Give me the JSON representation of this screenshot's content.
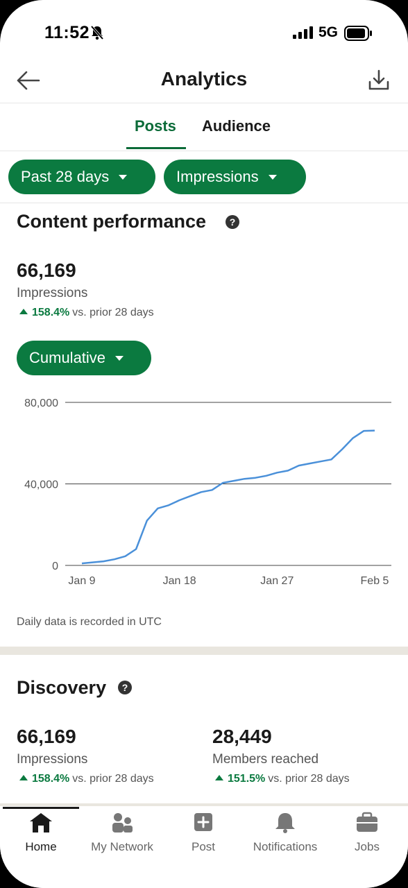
{
  "status": {
    "time": "11:52",
    "network": "5G"
  },
  "header": {
    "title": "Analytics"
  },
  "tabs": [
    {
      "label": "Posts"
    },
    {
      "label": "Audience"
    }
  ],
  "filters": {
    "period": "Past 28 days",
    "metric": "Impressions"
  },
  "content_performance": {
    "title": "Content performance",
    "value": "66,169",
    "label": "Impressions",
    "delta_pct": "158.4%",
    "delta_text": "vs. prior 28 days",
    "mode": "Cumulative",
    "note": "Daily data is recorded in UTC"
  },
  "chart_data": {
    "type": "line",
    "x": [
      "Jan 9",
      "Jan 10",
      "Jan 11",
      "Jan 12",
      "Jan 13",
      "Jan 14",
      "Jan 15",
      "Jan 16",
      "Jan 17",
      "Jan 18",
      "Jan 19",
      "Jan 20",
      "Jan 21",
      "Jan 22",
      "Jan 23",
      "Jan 24",
      "Jan 25",
      "Jan 26",
      "Jan 27",
      "Jan 28",
      "Jan 29",
      "Jan 30",
      "Jan 31",
      "Feb 1",
      "Feb 2",
      "Feb 3",
      "Feb 4",
      "Feb 5"
    ],
    "series": [
      {
        "values": [
          1000,
          1500,
          2000,
          3000,
          4500,
          8000,
          22000,
          28000,
          29500,
          32000,
          34000,
          36000,
          37000,
          40500,
          41500,
          42500,
          43000,
          44000,
          45500,
          46500,
          49000,
          50000,
          51000,
          52000,
          57000,
          62500,
          66000,
          66169
        ]
      }
    ],
    "x_ticks": [
      "Jan 9",
      "Jan 18",
      "Jan 27",
      "Feb 5"
    ],
    "y_ticks": [
      "0",
      "40,000",
      "80,000"
    ],
    "ylim": [
      0,
      80000
    ],
    "grid": true,
    "color": "#4a90d9"
  },
  "discovery": {
    "title": "Discovery",
    "metrics": [
      {
        "value": "66,169",
        "label": "Impressions",
        "delta_pct": "158.4%",
        "delta_text": "vs. prior 28 days"
      },
      {
        "value": "28,449",
        "label": "Members reached",
        "delta_pct": "151.5%",
        "delta_text": "vs. prior 28 days"
      }
    ]
  },
  "nav": [
    {
      "label": "Home",
      "icon": "home-icon"
    },
    {
      "label": "My Network",
      "icon": "network-icon"
    },
    {
      "label": "Post",
      "icon": "post-icon"
    },
    {
      "label": "Notifications",
      "icon": "bell-icon"
    },
    {
      "label": "Jobs",
      "icon": "briefcase-icon"
    }
  ],
  "colors": {
    "accent": "#0b7a40",
    "accent_text": "#0b6b38",
    "line": "#4a90d9"
  }
}
